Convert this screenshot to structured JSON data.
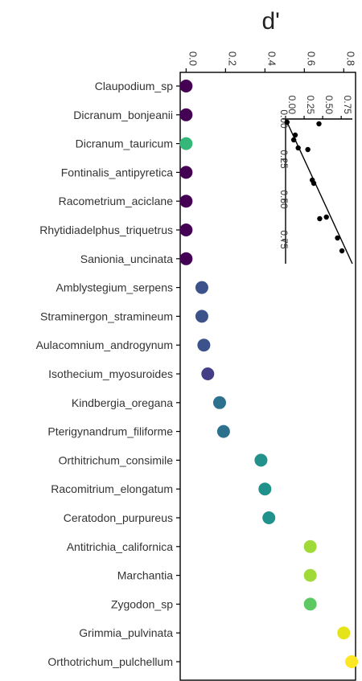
{
  "chart_data": [
    {
      "type": "scatter",
      "title": "",
      "xlabel": "d'",
      "ylabel": "",
      "x_axis_position": "top",
      "x_ticks": [
        "0.0",
        "0.2",
        "0.4",
        "0.6",
        "0.8"
      ],
      "xlim": [
        -0.03,
        0.86
      ],
      "grid": false,
      "legend": "none",
      "color_scale": "viridis",
      "categories": [
        "Claupodium_sp",
        "Dicranum_bonjeanii",
        "Dicranum_tauricum",
        "Fontinalis_antipyretica",
        "Racometrium_aciclane",
        "Rhytidiadelphus_triquetrus",
        "Sanionia_uncinata",
        "Amblystegium_serpens",
        "Straminergon_stramineum",
        "Aulacomnium_androgynum",
        "Isothecium_myosuroides",
        "Kindbergia_oregana",
        "Pterigynandrum_filiforme",
        "Orthitrichum_consimile",
        "Racomitrium_elongatum",
        "Ceratodon_purpureus",
        "Antitrichia_californica",
        "Marchantia",
        "Zygodon_sp",
        "Grimmia_pulvinata",
        "Orthotrichum_pulchellum"
      ],
      "values": [
        0.0,
        0.0,
        0.0,
        0.0,
        0.0,
        0.0,
        0.0,
        0.08,
        0.08,
        0.09,
        0.11,
        0.17,
        0.19,
        0.38,
        0.4,
        0.42,
        0.63,
        0.63,
        0.63,
        0.8,
        0.84
      ],
      "colors": [
        "#440154",
        "#440154",
        "#35b779",
        "#440154",
        "#440154",
        "#440154",
        "#440154",
        "#3b528b",
        "#3b528b",
        "#3b528b",
        "#433e85",
        "#2c728e",
        "#2c728e",
        "#21918c",
        "#21918c",
        "#21918c",
        "#a0da39",
        "#a0da39",
        "#5ec962",
        "#e5e419",
        "#fde725"
      ]
    },
    {
      "type": "scatter",
      "title": "",
      "xlabel": "",
      "ylabel": "",
      "x_ticks": [
        "0.00",
        "0.25",
        "0.50",
        "0.75"
      ],
      "y_ticks": [
        "0.00",
        "0.25",
        "0.50",
        "0.75"
      ],
      "xlim": [
        0,
        0.9
      ],
      "ylim": [
        0,
        0.9
      ],
      "trend_line": {
        "from": [
          0,
          0
        ],
        "to": [
          0.9,
          0.9
        ]
      },
      "points": [
        {
          "x": 0.02,
          "y": 0.02
        },
        {
          "x": 0.45,
          "y": 0.03
        },
        {
          "x": 0.13,
          "y": 0.1
        },
        {
          "x": 0.11,
          "y": 0.13
        },
        {
          "x": 0.17,
          "y": 0.18
        },
        {
          "x": 0.3,
          "y": 0.19
        },
        {
          "x": 0.36,
          "y": 0.38
        },
        {
          "x": 0.38,
          "y": 0.4
        },
        {
          "x": 0.46,
          "y": 0.62
        },
        {
          "x": 0.55,
          "y": 0.61
        },
        {
          "x": 0.7,
          "y": 0.74
        },
        {
          "x": 0.76,
          "y": 0.82
        }
      ]
    }
  ]
}
